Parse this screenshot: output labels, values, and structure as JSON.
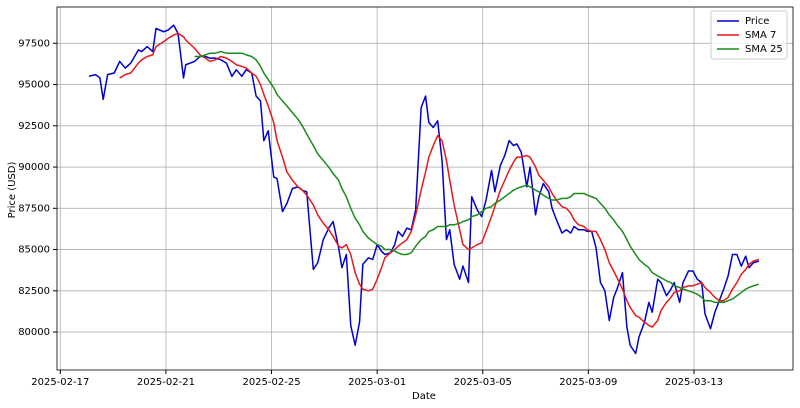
{
  "chart_data": {
    "type": "line",
    "x_label": "Date",
    "y_label": "Price (USD)",
    "x": [
      "2025-02-18T02:00",
      "2025-02-18T08:00",
      "2025-02-18T12:00",
      "2025-02-18T15:00",
      "2025-02-18T19:00",
      "2025-02-19T01:00",
      "2025-02-19T06:00",
      "2025-02-19T11:00",
      "2025-02-19T16:00",
      "2025-02-19T23:00",
      "2025-02-20T02:00",
      "2025-02-20T07:00",
      "2025-02-20T12:00",
      "2025-02-20T15:00",
      "2025-02-20T22:00",
      "2025-02-21T02:00",
      "2025-02-21T07:00",
      "2025-02-21T11:00",
      "2025-02-21T16:00",
      "2025-02-21T18:00",
      "2025-02-22T02:00",
      "2025-02-22T07:00",
      "2025-02-22T12:00",
      "2025-02-22T16:00",
      "2025-02-22T21:00",
      "2025-02-23T02:00",
      "2025-02-23T07:00",
      "2025-02-23T12:00",
      "2025-02-23T16:00",
      "2025-02-23T21:00",
      "2025-02-24T01:00",
      "2025-02-24T06:00",
      "2025-02-24T10:00",
      "2025-02-24T14:00",
      "2025-02-24T17:00",
      "2025-02-24T21:00",
      "2025-02-25T02:00",
      "2025-02-25T05:00",
      "2025-02-25T10:00",
      "2025-02-25T14:00",
      "2025-02-25T19:00",
      "2025-02-26T00:00",
      "2025-02-26T04:00",
      "2025-02-26T08:00",
      "2025-02-26T14:00",
      "2025-02-26T18:00",
      "2025-02-26T23:00",
      "2025-02-27T04:00",
      "2025-02-27T08:00",
      "2025-02-27T13:00",
      "2025-02-27T16:00",
      "2025-02-27T20:00",
      "2025-02-28T00:00",
      "2025-02-28T04:00",
      "2025-02-28T08:00",
      "2025-02-28T11:00",
      "2025-02-28T16:00",
      "2025-02-28T20:00",
      "2025-03-01T00:00",
      "2025-03-01T04:00",
      "2025-03-01T07:00",
      "2025-03-01T12:00",
      "2025-03-01T16:00",
      "2025-03-01T19:00",
      "2025-03-01T23:00",
      "2025-03-02T03:00",
      "2025-03-02T07:00",
      "2025-03-02T11:00",
      "2025-03-02T16:00",
      "2025-03-02T20:00",
      "2025-03-02T23:00",
      "2025-03-03T03:00",
      "2025-03-03T07:00",
      "2025-03-03T11:00",
      "2025-03-03T15:00",
      "2025-03-03T18:00",
      "2025-03-03T22:00",
      "2025-03-04T03:00",
      "2025-03-04T06:00",
      "2025-03-04T11:00",
      "2025-03-04T14:00",
      "2025-03-04T19:00",
      "2025-03-04T23:00",
      "2025-03-05T03:00",
      "2025-03-05T08:00",
      "2025-03-05T11:00",
      "2025-03-05T16:00",
      "2025-03-05T20:00",
      "2025-03-06T00:00",
      "2025-03-06T04:00",
      "2025-03-06T07:00",
      "2025-03-06T11:00",
      "2025-03-06T16:00",
      "2025-03-06T19:00",
      "2025-03-07T00:00",
      "2025-03-07T03:00",
      "2025-03-07T07:00",
      "2025-03-07T12:00",
      "2025-03-07T15:00",
      "2025-03-07T19:00",
      "2025-03-08T00:00",
      "2025-03-08T04:00",
      "2025-03-08T08:00",
      "2025-03-08T11:00",
      "2025-03-08T15:00",
      "2025-03-08T20:00",
      "2025-03-08T23:00",
      "2025-03-09T03:00",
      "2025-03-09T07:00",
      "2025-03-09T11:00",
      "2025-03-09T15:00",
      "2025-03-09T19:00",
      "2025-03-09T23:00",
      "2025-03-10T02:00",
      "2025-03-10T07:00",
      "2025-03-10T11:00",
      "2025-03-10T14:00",
      "2025-03-10T19:00",
      "2025-03-10T22:00",
      "2025-03-11T03:00",
      "2025-03-11T07:00",
      "2025-03-11T10:00",
      "2025-03-11T15:00",
      "2025-03-11T18:00",
      "2025-03-11T23:00",
      "2025-03-12T03:00",
      "2025-03-12T06:00",
      "2025-03-12T11:00",
      "2025-03-12T14:00",
      "2025-03-12T19:00",
      "2025-03-12T23:00",
      "2025-03-13T03:00",
      "2025-03-13T07:00",
      "2025-03-13T10:00",
      "2025-03-13T15:00",
      "2025-03-13T19:00",
      "2025-03-13T23:00",
      "2025-03-14T03:00",
      "2025-03-14T07:00",
      "2025-03-14T11:00",
      "2025-03-14T15:00",
      "2025-03-14T19:00",
      "2025-03-14T23:00",
      "2025-03-15T02:00",
      "2025-03-15T06:00",
      "2025-03-15T11:00"
    ],
    "series": [
      {
        "name": "Price",
        "color": "#0000cc",
        "values": [
          95500,
          95600,
          95400,
          94100,
          95600,
          95700,
          96400,
          96000,
          96300,
          97100,
          97000,
          97300,
          97000,
          98400,
          98200,
          98300,
          98600,
          98100,
          95400,
          96200,
          96400,
          96700,
          96700,
          96600,
          96600,
          96500,
          96300,
          95500,
          95900,
          95500,
          95900,
          95700,
          94300,
          94000,
          91600,
          92200,
          89400,
          89300,
          87300,
          87800,
          88700,
          88800,
          88600,
          88500,
          83800,
          84200,
          85600,
          86300,
          86700,
          85100,
          83900,
          84700,
          80400,
          79200,
          80600,
          84100,
          84500,
          84400,
          85300,
          84900,
          84700,
          84800,
          85300,
          86100,
          85800,
          86300,
          86200,
          87400,
          93600,
          94300,
          92700,
          92400,
          92800,
          90400,
          85600,
          86200,
          84100,
          83200,
          84000,
          83000,
          88200,
          87400,
          87000,
          88000,
          89800,
          88500,
          90100,
          90700,
          91600,
          91300,
          91400,
          90900,
          88800,
          90000,
          87100,
          88200,
          89000,
          88500,
          87500,
          86800,
          86000,
          86200,
          86000,
          86400,
          86200,
          86200,
          86100,
          86100,
          85100,
          83000,
          82500,
          80700,
          82100,
          82600,
          83600,
          80300,
          79200,
          78700,
          79700,
          80600,
          81800,
          81200,
          83200,
          83000,
          82200,
          82600,
          83000,
          81800,
          83000,
          83700,
          83700,
          83200,
          83000,
          81100,
          80200,
          81200,
          81900,
          82600,
          83400,
          84700,
          84700,
          84000,
          84600,
          83900,
          84200,
          84300
        ]
      },
      {
        "name": "SMA 7",
        "color": "#e41a1c",
        "values": [
          null,
          null,
          null,
          null,
          null,
          null,
          95400,
          95600,
          95700,
          96300,
          96500,
          96700,
          96800,
          97300,
          97600,
          97800,
          98000,
          98100,
          97900,
          97700,
          97200,
          96800,
          96600,
          96400,
          96500,
          96700,
          96600,
          96400,
          96200,
          96100,
          96000,
          95700,
          95500,
          95000,
          94400,
          93700,
          92700,
          91600,
          90600,
          89700,
          89200,
          88800,
          88600,
          88300,
          87700,
          87100,
          86600,
          86200,
          85800,
          85200,
          85100,
          85300,
          84700,
          83600,
          82900,
          82600,
          82500,
          82600,
          83200,
          83900,
          84500,
          84800,
          85000,
          85200,
          85400,
          85600,
          86100,
          87100,
          88600,
          89700,
          90600,
          91300,
          91900,
          91600,
          90400,
          89200,
          87700,
          86200,
          85300,
          85000,
          85100,
          85300,
          85400,
          86100,
          87000,
          87600,
          88600,
          89200,
          89800,
          90300,
          90600,
          90600,
          90700,
          90600,
          90000,
          89500,
          89200,
          88800,
          88400,
          88000,
          87600,
          87500,
          87200,
          86800,
          86500,
          86400,
          86200,
          86100,
          86100,
          85600,
          85000,
          84200,
          83700,
          83300,
          82600,
          81900,
          81500,
          81000,
          80900,
          80600,
          80400,
          80300,
          80700,
          81300,
          81800,
          82100,
          82400,
          82500,
          82700,
          82800,
          82800,
          82900,
          83000,
          82700,
          82400,
          82100,
          81900,
          81900,
          82100,
          82600,
          83000,
          83500,
          83800,
          84100,
          84300,
          84400
        ]
      },
      {
        "name": "SMA 25",
        "color": "#1a8c1a",
        "values": [
          null,
          null,
          null,
          null,
          null,
          null,
          null,
          null,
          null,
          null,
          null,
          null,
          null,
          null,
          null,
          null,
          null,
          null,
          null,
          null,
          96700,
          96700,
          96800,
          96900,
          96900,
          97000,
          96900,
          96900,
          96900,
          96900,
          96800,
          96700,
          96500,
          96100,
          95700,
          95300,
          94800,
          94400,
          94000,
          93700,
          93300,
          92900,
          92500,
          92000,
          91300,
          90800,
          90400,
          90000,
          89600,
          89200,
          88700,
          88200,
          87500,
          86900,
          86500,
          86100,
          85700,
          85500,
          85300,
          85200,
          85000,
          85000,
          84900,
          84800,
          84700,
          84700,
          84800,
          85200,
          85600,
          85800,
          86100,
          86200,
          86400,
          86400,
          86400,
          86500,
          86500,
          86600,
          86700,
          86800,
          87000,
          87100,
          87300,
          87500,
          87600,
          87800,
          88000,
          88200,
          88400,
          88600,
          88700,
          88800,
          88900,
          88800,
          88600,
          88500,
          88300,
          88100,
          88000,
          88000,
          88100,
          88100,
          88200,
          88400,
          88400,
          88400,
          88300,
          88200,
          88100,
          87800,
          87500,
          87100,
          86800,
          86500,
          86100,
          85600,
          85200,
          84700,
          84400,
          84100,
          83900,
          83600,
          83400,
          83300,
          83100,
          83000,
          82800,
          82700,
          82600,
          82500,
          82400,
          82300,
          82100,
          81900,
          81900,
          81800,
          81800,
          81800,
          81900,
          82000,
          82200,
          82400,
          82600,
          82700,
          82800,
          82900
        ]
      }
    ],
    "xlim": [
      "2025-02-16T21:00",
      "2025-03-16T18:00"
    ],
    "xticks": [
      "2025-02-17",
      "2025-02-21",
      "2025-02-25",
      "2025-03-01",
      "2025-03-05",
      "2025-03-09",
      "2025-03-13"
    ],
    "ylim": [
      77700,
      99700
    ],
    "yticks": [
      80000,
      82500,
      85000,
      87500,
      90000,
      92500,
      95000,
      97500
    ],
    "grid": true,
    "legend": "upper right"
  }
}
